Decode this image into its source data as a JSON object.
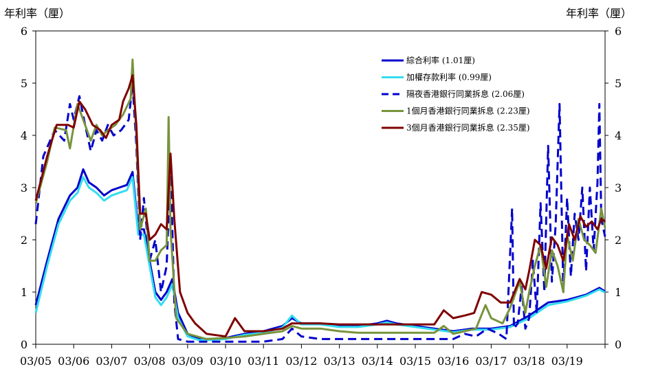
{
  "chart_data": {
    "type": "line",
    "ylabel_left": "年利率（厘）",
    "ylabel_right": "年利率（厘）",
    "ylim": [
      0,
      6
    ],
    "yticks": [
      "0",
      "1",
      "2",
      "3",
      "4",
      "5",
      "6"
    ],
    "x_tick_labels": [
      "03/05",
      "03/06",
      "03/07",
      "03/08",
      "03/09",
      "03/10",
      "03/11",
      "03/12",
      "03/13",
      "03/14",
      "03/15",
      "03/16",
      "03/17",
      "03/18",
      "03/19"
    ],
    "x_range": [
      2005,
      2020
    ],
    "legend_position": "top-right",
    "grid": false,
    "series": [
      {
        "name": "綜合利率 (1.01厘)",
        "color": "#0000CC",
        "style": "solid",
        "points": [
          [
            2005.0,
            0.75
          ],
          [
            2005.3,
            1.6
          ],
          [
            2005.6,
            2.4
          ],
          [
            2005.9,
            2.85
          ],
          [
            2006.1,
            3.0
          ],
          [
            2006.25,
            3.35
          ],
          [
            2006.4,
            3.1
          ],
          [
            2006.6,
            3.0
          ],
          [
            2006.8,
            2.85
          ],
          [
            2007.0,
            2.95
          ],
          [
            2007.2,
            3.0
          ],
          [
            2007.4,
            3.05
          ],
          [
            2007.55,
            3.3
          ],
          [
            2007.7,
            2.2
          ],
          [
            2007.85,
            2.2
          ],
          [
            2008.0,
            1.6
          ],
          [
            2008.15,
            1.0
          ],
          [
            2008.3,
            0.85
          ],
          [
            2008.45,
            1.0
          ],
          [
            2008.6,
            1.25
          ],
          [
            2008.75,
            0.6
          ],
          [
            2009.0,
            0.2
          ],
          [
            2009.3,
            0.1
          ],
          [
            2009.6,
            0.1
          ],
          [
            2010.0,
            0.12
          ],
          [
            2010.5,
            0.2
          ],
          [
            2011.0,
            0.25
          ],
          [
            2011.5,
            0.35
          ],
          [
            2011.75,
            0.5
          ],
          [
            2012.0,
            0.4
          ],
          [
            2012.5,
            0.4
          ],
          [
            2013.0,
            0.35
          ],
          [
            2013.5,
            0.35
          ],
          [
            2014.0,
            0.4
          ],
          [
            2014.25,
            0.45
          ],
          [
            2014.5,
            0.4
          ],
          [
            2015.0,
            0.35
          ],
          [
            2015.5,
            0.3
          ],
          [
            2016.0,
            0.25
          ],
          [
            2016.5,
            0.3
          ],
          [
            2017.0,
            0.3
          ],
          [
            2017.5,
            0.35
          ],
          [
            2018.0,
            0.55
          ],
          [
            2018.5,
            0.8
          ],
          [
            2019.0,
            0.85
          ],
          [
            2019.5,
            0.95
          ],
          [
            2019.85,
            1.08
          ],
          [
            2020.0,
            1.01
          ]
        ]
      },
      {
        "name": "加權存款利率 (0.99厘)",
        "color": "#33DDEE",
        "style": "solid",
        "points": [
          [
            2005.0,
            0.6
          ],
          [
            2005.3,
            1.5
          ],
          [
            2005.6,
            2.3
          ],
          [
            2005.9,
            2.75
          ],
          [
            2006.1,
            2.9
          ],
          [
            2006.25,
            3.2
          ],
          [
            2006.4,
            3.0
          ],
          [
            2006.6,
            2.9
          ],
          [
            2006.8,
            2.75
          ],
          [
            2007.0,
            2.85
          ],
          [
            2007.2,
            2.9
          ],
          [
            2007.4,
            2.95
          ],
          [
            2007.55,
            3.2
          ],
          [
            2007.7,
            2.1
          ],
          [
            2007.85,
            2.1
          ],
          [
            2008.0,
            1.5
          ],
          [
            2008.15,
            0.9
          ],
          [
            2008.3,
            0.75
          ],
          [
            2008.45,
            0.9
          ],
          [
            2008.6,
            1.15
          ],
          [
            2008.75,
            0.5
          ],
          [
            2009.0,
            0.15
          ],
          [
            2009.3,
            0.08
          ],
          [
            2009.6,
            0.08
          ],
          [
            2010.0,
            0.1
          ],
          [
            2010.5,
            0.18
          ],
          [
            2011.0,
            0.22
          ],
          [
            2011.5,
            0.32
          ],
          [
            2011.75,
            0.55
          ],
          [
            2012.0,
            0.38
          ],
          [
            2012.5,
            0.38
          ],
          [
            2013.0,
            0.33
          ],
          [
            2013.5,
            0.33
          ],
          [
            2014.0,
            0.38
          ],
          [
            2014.25,
            0.42
          ],
          [
            2014.5,
            0.38
          ],
          [
            2015.0,
            0.33
          ],
          [
            2015.5,
            0.28
          ],
          [
            2016.0,
            0.23
          ],
          [
            2016.5,
            0.28
          ],
          [
            2017.0,
            0.28
          ],
          [
            2017.5,
            0.33
          ],
          [
            2018.0,
            0.5
          ],
          [
            2018.5,
            0.75
          ],
          [
            2019.0,
            0.82
          ],
          [
            2019.5,
            0.93
          ],
          [
            2019.85,
            1.05
          ],
          [
            2020.0,
            0.99
          ]
        ]
      },
      {
        "name": "隔夜香港銀行同業拆息 (2.06厘)",
        "color": "#0000CC",
        "style": "dashed",
        "points": [
          [
            2005.0,
            2.3
          ],
          [
            2005.2,
            3.6
          ],
          [
            2005.5,
            4.1
          ],
          [
            2005.75,
            3.9
          ],
          [
            2005.9,
            4.6
          ],
          [
            2006.0,
            4.3
          ],
          [
            2006.15,
            4.75
          ],
          [
            2006.3,
            4.2
          ],
          [
            2006.45,
            3.7
          ],
          [
            2006.6,
            4.1
          ],
          [
            2006.75,
            3.9
          ],
          [
            2006.9,
            4.2
          ],
          [
            2007.05,
            4.0
          ],
          [
            2007.25,
            4.1
          ],
          [
            2007.45,
            4.3
          ],
          [
            2007.55,
            5.0
          ],
          [
            2007.65,
            3.8
          ],
          [
            2007.75,
            2.0
          ],
          [
            2007.85,
            2.8
          ],
          [
            2008.0,
            1.6
          ],
          [
            2008.15,
            2.0
          ],
          [
            2008.3,
            1.0
          ],
          [
            2008.45,
            1.5
          ],
          [
            2008.55,
            3.5
          ],
          [
            2008.65,
            0.8
          ],
          [
            2008.75,
            0.1
          ],
          [
            2009.0,
            0.05
          ],
          [
            2009.5,
            0.05
          ],
          [
            2010.0,
            0.05
          ],
          [
            2010.5,
            0.05
          ],
          [
            2011.0,
            0.05
          ],
          [
            2011.5,
            0.1
          ],
          [
            2011.75,
            0.3
          ],
          [
            2012.0,
            0.15
          ],
          [
            2012.5,
            0.1
          ],
          [
            2013.0,
            0.1
          ],
          [
            2013.5,
            0.1
          ],
          [
            2014.0,
            0.1
          ],
          [
            2014.5,
            0.1
          ],
          [
            2015.0,
            0.1
          ],
          [
            2015.5,
            0.1
          ],
          [
            2016.0,
            0.1
          ],
          [
            2016.3,
            0.2
          ],
          [
            2016.6,
            0.15
          ],
          [
            2016.9,
            0.3
          ],
          [
            2017.2,
            0.2
          ],
          [
            2017.4,
            0.1
          ],
          [
            2017.55,
            2.6
          ],
          [
            2017.6,
            0.3
          ],
          [
            2017.7,
            0.4
          ],
          [
            2017.8,
            1.1
          ],
          [
            2017.9,
            0.3
          ],
          [
            2018.0,
            0.5
          ],
          [
            2018.1,
            1.6
          ],
          [
            2018.2,
            0.6
          ],
          [
            2018.3,
            2.7
          ],
          [
            2018.4,
            1.0
          ],
          [
            2018.5,
            3.8
          ],
          [
            2018.6,
            1.2
          ],
          [
            2018.7,
            2.3
          ],
          [
            2018.8,
            4.6
          ],
          [
            2018.9,
            1.0
          ],
          [
            2019.0,
            2.8
          ],
          [
            2019.1,
            1.3
          ],
          [
            2019.2,
            2.5
          ],
          [
            2019.3,
            2.0
          ],
          [
            2019.4,
            3.0
          ],
          [
            2019.5,
            1.4
          ],
          [
            2019.6,
            3.0
          ],
          [
            2019.7,
            1.8
          ],
          [
            2019.8,
            3.1
          ],
          [
            2019.85,
            4.6
          ],
          [
            2019.9,
            2.4
          ],
          [
            2020.0,
            2.06
          ]
        ]
      },
      {
        "name": "1個月香港銀行同業拆息 (2.23厘)",
        "color": "#77933C",
        "style": "solid",
        "points": [
          [
            2005.0,
            2.7
          ],
          [
            2005.3,
            3.5
          ],
          [
            2005.5,
            4.15
          ],
          [
            2005.8,
            4.1
          ],
          [
            2005.9,
            3.75
          ],
          [
            2006.1,
            4.6
          ],
          [
            2006.25,
            4.3
          ],
          [
            2006.45,
            3.9
          ],
          [
            2006.6,
            4.2
          ],
          [
            2006.75,
            4.0
          ],
          [
            2006.9,
            4.1
          ],
          [
            2007.1,
            4.2
          ],
          [
            2007.3,
            4.4
          ],
          [
            2007.5,
            4.7
          ],
          [
            2007.55,
            5.45
          ],
          [
            2007.65,
            4.0
          ],
          [
            2007.75,
            2.2
          ],
          [
            2007.9,
            2.6
          ],
          [
            2008.0,
            1.6
          ],
          [
            2008.15,
            1.6
          ],
          [
            2008.3,
            1.8
          ],
          [
            2008.45,
            1.9
          ],
          [
            2008.5,
            4.35
          ],
          [
            2008.55,
            2.2
          ],
          [
            2008.7,
            0.5
          ],
          [
            2008.9,
            0.3
          ],
          [
            2009.0,
            0.2
          ],
          [
            2009.5,
            0.1
          ],
          [
            2010.0,
            0.12
          ],
          [
            2010.5,
            0.15
          ],
          [
            2011.0,
            0.2
          ],
          [
            2011.5,
            0.25
          ],
          [
            2011.75,
            0.35
          ],
          [
            2012.0,
            0.3
          ],
          [
            2012.5,
            0.3
          ],
          [
            2013.0,
            0.25
          ],
          [
            2013.5,
            0.22
          ],
          [
            2014.0,
            0.22
          ],
          [
            2014.5,
            0.22
          ],
          [
            2015.0,
            0.22
          ],
          [
            2015.5,
            0.22
          ],
          [
            2015.75,
            0.35
          ],
          [
            2016.0,
            0.2
          ],
          [
            2016.3,
            0.25
          ],
          [
            2016.6,
            0.3
          ],
          [
            2016.85,
            0.75
          ],
          [
            2017.0,
            0.5
          ],
          [
            2017.3,
            0.4
          ],
          [
            2017.5,
            0.7
          ],
          [
            2017.75,
            1.2
          ],
          [
            2017.9,
            0.6
          ],
          [
            2018.0,
            1.0
          ],
          [
            2018.15,
            1.5
          ],
          [
            2018.3,
            1.9
          ],
          [
            2018.45,
            1.1
          ],
          [
            2018.6,
            1.8
          ],
          [
            2018.75,
            1.5
          ],
          [
            2018.9,
            1.0
          ],
          [
            2019.0,
            2.1
          ],
          [
            2019.15,
            1.6
          ],
          [
            2019.3,
            2.4
          ],
          [
            2019.45,
            2.0
          ],
          [
            2019.6,
            1.9
          ],
          [
            2019.75,
            1.75
          ],
          [
            2019.9,
            2.6
          ],
          [
            2020.0,
            2.23
          ]
        ]
      },
      {
        "name": "3個月香港銀行同業拆息 (2.35厘)",
        "color": "#7F0000",
        "style": "solid",
        "points": [
          [
            2005.0,
            2.75
          ],
          [
            2005.3,
            3.6
          ],
          [
            2005.55,
            4.2
          ],
          [
            2005.85,
            4.2
          ],
          [
            2006.0,
            4.15
          ],
          [
            2006.15,
            4.65
          ],
          [
            2006.3,
            4.5
          ],
          [
            2006.5,
            4.2
          ],
          [
            2006.7,
            4.1
          ],
          [
            2006.85,
            3.95
          ],
          [
            2007.0,
            4.2
          ],
          [
            2007.2,
            4.3
          ],
          [
            2007.3,
            4.65
          ],
          [
            2007.45,
            4.9
          ],
          [
            2007.55,
            5.15
          ],
          [
            2007.65,
            4.2
          ],
          [
            2007.75,
            2.5
          ],
          [
            2007.9,
            2.5
          ],
          [
            2008.0,
            2.0
          ],
          [
            2008.15,
            2.1
          ],
          [
            2008.3,
            2.3
          ],
          [
            2008.45,
            2.2
          ],
          [
            2008.55,
            3.65
          ],
          [
            2008.65,
            2.4
          ],
          [
            2008.8,
            1.0
          ],
          [
            2009.0,
            0.6
          ],
          [
            2009.2,
            0.4
          ],
          [
            2009.5,
            0.2
          ],
          [
            2010.0,
            0.15
          ],
          [
            2010.25,
            0.5
          ],
          [
            2010.5,
            0.25
          ],
          [
            2011.0,
            0.25
          ],
          [
            2011.5,
            0.3
          ],
          [
            2011.75,
            0.4
          ],
          [
            2012.0,
            0.4
          ],
          [
            2012.5,
            0.4
          ],
          [
            2013.0,
            0.38
          ],
          [
            2013.5,
            0.38
          ],
          [
            2014.0,
            0.38
          ],
          [
            2014.5,
            0.38
          ],
          [
            2015.0,
            0.38
          ],
          [
            2015.5,
            0.38
          ],
          [
            2015.75,
            0.65
          ],
          [
            2016.0,
            0.5
          ],
          [
            2016.3,
            0.55
          ],
          [
            2016.55,
            0.6
          ],
          [
            2016.75,
            1.0
          ],
          [
            2017.0,
            0.95
          ],
          [
            2017.25,
            0.8
          ],
          [
            2017.5,
            0.8
          ],
          [
            2017.75,
            1.25
          ],
          [
            2017.9,
            1.05
          ],
          [
            2018.0,
            1.4
          ],
          [
            2018.15,
            2.0
          ],
          [
            2018.3,
            1.9
          ],
          [
            2018.45,
            1.45
          ],
          [
            2018.6,
            2.05
          ],
          [
            2018.75,
            1.9
          ],
          [
            2018.9,
            1.6
          ],
          [
            2019.05,
            2.3
          ],
          [
            2019.2,
            2.0
          ],
          [
            2019.35,
            2.45
          ],
          [
            2019.5,
            2.25
          ],
          [
            2019.65,
            2.35
          ],
          [
            2019.8,
            2.2
          ],
          [
            2019.9,
            2.4
          ],
          [
            2020.0,
            2.35
          ]
        ]
      }
    ]
  }
}
